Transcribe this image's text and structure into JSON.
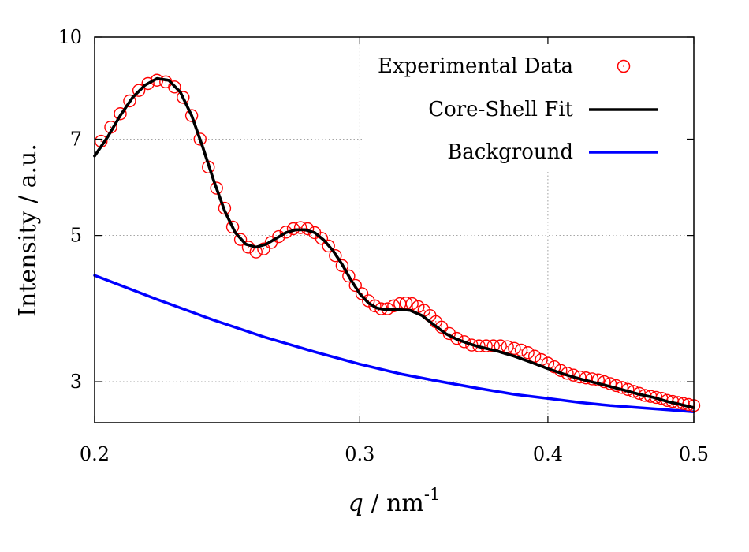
{
  "chart_data": {
    "type": "scatter",
    "xlabel": {
      "symbol": "q",
      "rest": " / nm",
      "exponent": "-1"
    },
    "ylabel": "Intensity / a.u.",
    "x_scale": "log",
    "y_scale": "log",
    "xlim": [
      0.2,
      0.5
    ],
    "ylim": [
      2.6,
      10
    ],
    "x_ticks": [
      {
        "value": 0.2,
        "label": "0.2"
      },
      {
        "value": 0.3,
        "label": "0.3"
      },
      {
        "value": 0.4,
        "label": "0.4"
      },
      {
        "value": 0.5,
        "label": "0.5"
      }
    ],
    "y_ticks": [
      {
        "value": 3,
        "label": "3"
      },
      {
        "value": 5,
        "label": "5"
      },
      {
        "value": 7,
        "label": "7"
      },
      {
        "value": 10,
        "label": "10"
      }
    ],
    "grid": true,
    "legend_position": "top-right",
    "series": [
      {
        "name": "Experimental Data",
        "style": "open-circle",
        "color": "#ff0000",
        "points": [
          [
            0.202,
            6.95
          ],
          [
            0.205,
            7.3
          ],
          [
            0.208,
            7.65
          ],
          [
            0.211,
            8.0
          ],
          [
            0.214,
            8.3
          ],
          [
            0.217,
            8.5
          ],
          [
            0.22,
            8.6
          ],
          [
            0.223,
            8.55
          ],
          [
            0.226,
            8.4
          ],
          [
            0.229,
            8.1
          ],
          [
            0.232,
            7.6
          ],
          [
            0.235,
            7.0
          ],
          [
            0.238,
            6.35
          ],
          [
            0.241,
            5.9
          ],
          [
            0.244,
            5.5
          ],
          [
            0.247,
            5.15
          ],
          [
            0.25,
            4.93
          ],
          [
            0.253,
            4.8
          ],
          [
            0.256,
            4.72
          ],
          [
            0.259,
            4.77
          ],
          [
            0.262,
            4.88
          ],
          [
            0.265,
            4.98
          ],
          [
            0.268,
            5.06
          ],
          [
            0.271,
            5.12
          ],
          [
            0.274,
            5.14
          ],
          [
            0.277,
            5.12
          ],
          [
            0.28,
            5.05
          ],
          [
            0.283,
            4.95
          ],
          [
            0.286,
            4.82
          ],
          [
            0.289,
            4.66
          ],
          [
            0.292,
            4.5
          ],
          [
            0.295,
            4.34
          ],
          [
            0.298,
            4.2
          ],
          [
            0.301,
            4.08
          ],
          [
            0.304,
            3.98
          ],
          [
            0.307,
            3.91
          ],
          [
            0.31,
            3.87
          ],
          [
            0.313,
            3.87
          ],
          [
            0.316,
            3.91
          ],
          [
            0.319,
            3.94
          ],
          [
            0.322,
            3.95
          ],
          [
            0.325,
            3.94
          ],
          [
            0.328,
            3.9
          ],
          [
            0.331,
            3.85
          ],
          [
            0.334,
            3.78
          ],
          [
            0.337,
            3.7
          ],
          [
            0.34,
            3.63
          ],
          [
            0.344,
            3.55
          ],
          [
            0.348,
            3.49
          ],
          [
            0.352,
            3.45
          ],
          [
            0.356,
            3.41
          ],
          [
            0.36,
            3.4
          ],
          [
            0.364,
            3.4
          ],
          [
            0.368,
            3.4
          ],
          [
            0.372,
            3.4
          ],
          [
            0.376,
            3.39
          ],
          [
            0.38,
            3.37
          ],
          [
            0.384,
            3.35
          ],
          [
            0.388,
            3.32
          ],
          [
            0.392,
            3.28
          ],
          [
            0.396,
            3.24
          ],
          [
            0.4,
            3.2
          ],
          [
            0.404,
            3.16
          ],
          [
            0.408,
            3.12
          ],
          [
            0.412,
            3.09
          ],
          [
            0.416,
            3.07
          ],
          [
            0.42,
            3.05
          ],
          [
            0.424,
            3.04
          ],
          [
            0.428,
            3.03
          ],
          [
            0.432,
            3.02
          ],
          [
            0.436,
            3.0
          ],
          [
            0.44,
            2.98
          ],
          [
            0.444,
            2.96
          ],
          [
            0.448,
            2.94
          ],
          [
            0.452,
            2.92
          ],
          [
            0.456,
            2.9
          ],
          [
            0.46,
            2.88
          ],
          [
            0.464,
            2.86
          ],
          [
            0.468,
            2.85
          ],
          [
            0.472,
            2.84
          ],
          [
            0.476,
            2.83
          ],
          [
            0.48,
            2.81
          ],
          [
            0.484,
            2.8
          ],
          [
            0.488,
            2.79
          ],
          [
            0.492,
            2.78
          ],
          [
            0.496,
            2.77
          ],
          [
            0.5,
            2.76
          ]
        ]
      },
      {
        "name": "Core-Shell Fit",
        "style": "line",
        "color": "#000000",
        "points": [
          [
            0.2,
            6.6
          ],
          [
            0.204,
            7.05
          ],
          [
            0.208,
            7.6
          ],
          [
            0.212,
            8.1
          ],
          [
            0.216,
            8.45
          ],
          [
            0.22,
            8.65
          ],
          [
            0.224,
            8.6
          ],
          [
            0.228,
            8.25
          ],
          [
            0.232,
            7.6
          ],
          [
            0.236,
            6.8
          ],
          [
            0.24,
            6.05
          ],
          [
            0.244,
            5.45
          ],
          [
            0.248,
            5.05
          ],
          [
            0.252,
            4.85
          ],
          [
            0.256,
            4.8
          ],
          [
            0.26,
            4.85
          ],
          [
            0.264,
            4.95
          ],
          [
            0.268,
            5.05
          ],
          [
            0.272,
            5.1
          ],
          [
            0.276,
            5.1
          ],
          [
            0.28,
            5.05
          ],
          [
            0.284,
            4.92
          ],
          [
            0.288,
            4.74
          ],
          [
            0.292,
            4.52
          ],
          [
            0.296,
            4.28
          ],
          [
            0.3,
            4.08
          ],
          [
            0.304,
            3.95
          ],
          [
            0.308,
            3.88
          ],
          [
            0.312,
            3.86
          ],
          [
            0.318,
            3.86
          ],
          [
            0.324,
            3.85
          ],
          [
            0.33,
            3.78
          ],
          [
            0.336,
            3.66
          ],
          [
            0.342,
            3.55
          ],
          [
            0.348,
            3.48
          ],
          [
            0.354,
            3.43
          ],
          [
            0.36,
            3.39
          ],
          [
            0.37,
            3.34
          ],
          [
            0.38,
            3.28
          ],
          [
            0.39,
            3.21
          ],
          [
            0.4,
            3.14
          ],
          [
            0.41,
            3.08
          ],
          [
            0.42,
            3.03
          ],
          [
            0.43,
            2.99
          ],
          [
            0.44,
            2.95
          ],
          [
            0.45,
            2.91
          ],
          [
            0.46,
            2.87
          ],
          [
            0.47,
            2.84
          ],
          [
            0.48,
            2.8
          ],
          [
            0.49,
            2.77
          ],
          [
            0.5,
            2.74
          ]
        ]
      },
      {
        "name": "Background",
        "style": "line",
        "color": "#0000ff",
        "points": [
          [
            0.2,
            4.35
          ],
          [
            0.22,
            4.0
          ],
          [
            0.24,
            3.72
          ],
          [
            0.26,
            3.5
          ],
          [
            0.28,
            3.33
          ],
          [
            0.3,
            3.19
          ],
          [
            0.32,
            3.08
          ],
          [
            0.34,
            3.0
          ],
          [
            0.36,
            2.93
          ],
          [
            0.38,
            2.87
          ],
          [
            0.4,
            2.83
          ],
          [
            0.42,
            2.79
          ],
          [
            0.44,
            2.76
          ],
          [
            0.46,
            2.74
          ],
          [
            0.48,
            2.72
          ],
          [
            0.5,
            2.7
          ]
        ]
      }
    ]
  }
}
